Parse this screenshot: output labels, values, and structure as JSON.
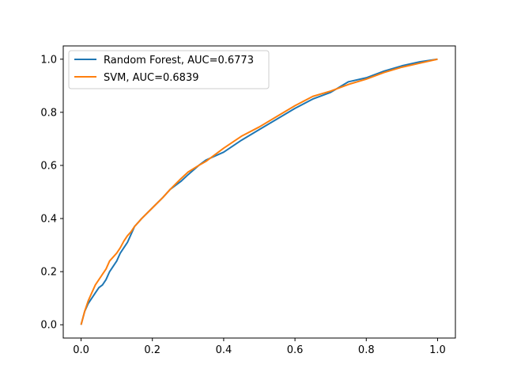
{
  "chart_data": {
    "type": "line",
    "title": "",
    "xlabel": "",
    "ylabel": "",
    "xlim": [
      -0.05,
      1.05
    ],
    "ylim": [
      -0.05,
      1.05
    ],
    "x_ticks": [
      "0.0",
      "0.2",
      "0.4",
      "0.6",
      "0.8",
      "1.0"
    ],
    "y_ticks": [
      "0.0",
      "0.2",
      "0.4",
      "0.6",
      "0.8",
      "1.0"
    ],
    "grid": false,
    "legend_position": "upper-left",
    "series": [
      {
        "name": "Random Forest, AUC=0.6773",
        "color": "#1f77b4",
        "x": [
          0.0,
          0.01,
          0.02,
          0.03,
          0.04,
          0.05,
          0.06,
          0.07,
          0.08,
          0.09,
          0.1,
          0.11,
          0.12,
          0.13,
          0.14,
          0.15,
          0.17,
          0.2,
          0.23,
          0.25,
          0.28,
          0.3,
          0.33,
          0.35,
          0.4,
          0.45,
          0.5,
          0.55,
          0.6,
          0.65,
          0.7,
          0.75,
          0.8,
          0.85,
          0.9,
          0.95,
          1.0
        ],
        "y": [
          0.0,
          0.05,
          0.08,
          0.1,
          0.12,
          0.14,
          0.15,
          0.17,
          0.2,
          0.22,
          0.24,
          0.27,
          0.29,
          0.31,
          0.34,
          0.37,
          0.4,
          0.44,
          0.48,
          0.51,
          0.54,
          0.565,
          0.6,
          0.62,
          0.65,
          0.695,
          0.735,
          0.775,
          0.815,
          0.85,
          0.875,
          0.915,
          0.93,
          0.955,
          0.975,
          0.99,
          1.0
        ]
      },
      {
        "name": "SVM, AUC=0.6839",
        "color": "#ff7f0e",
        "x": [
          0.0,
          0.01,
          0.02,
          0.03,
          0.04,
          0.05,
          0.06,
          0.07,
          0.08,
          0.09,
          0.1,
          0.11,
          0.12,
          0.13,
          0.14,
          0.15,
          0.17,
          0.2,
          0.23,
          0.25,
          0.28,
          0.3,
          0.33,
          0.35,
          0.4,
          0.45,
          0.5,
          0.55,
          0.6,
          0.65,
          0.7,
          0.75,
          0.8,
          0.85,
          0.9,
          0.95,
          1.0
        ],
        "y": [
          0.0,
          0.05,
          0.09,
          0.12,
          0.15,
          0.17,
          0.19,
          0.21,
          0.24,
          0.255,
          0.27,
          0.29,
          0.315,
          0.335,
          0.35,
          0.37,
          0.4,
          0.44,
          0.48,
          0.51,
          0.55,
          0.575,
          0.6,
          0.615,
          0.665,
          0.71,
          0.745,
          0.785,
          0.825,
          0.86,
          0.88,
          0.905,
          0.925,
          0.95,
          0.97,
          0.985,
          1.0
        ]
      }
    ]
  }
}
